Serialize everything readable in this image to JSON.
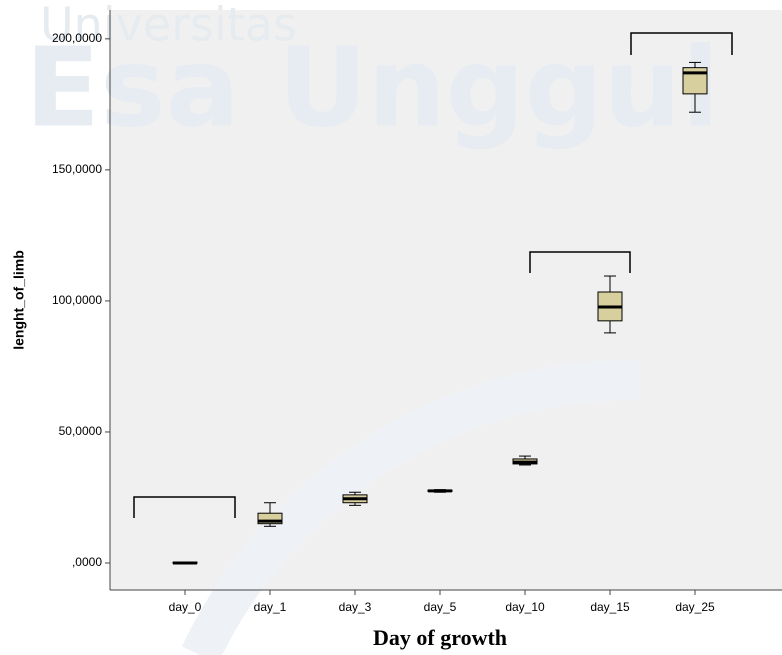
{
  "chart_data": {
    "type": "box",
    "watermark": [
      "Universitas",
      "Esa Unggul"
    ],
    "x_label": "Day of growth",
    "y_label": "lenght_of_limb",
    "categories": [
      "day_0",
      "day_1",
      "day_3",
      "day_5",
      "day_10",
      "day_15",
      "day_25"
    ],
    "boxes": [
      {
        "min": 0,
        "q1": 0,
        "median": 0,
        "q3": 0.3,
        "max": 0.3
      },
      {
        "min": 14,
        "q1": 15,
        "median": 16,
        "q3": 19,
        "max": 23
      },
      {
        "min": 22,
        "q1": 23,
        "median": 24.5,
        "q3": 26,
        "max": 27
      },
      {
        "min": 27,
        "q1": 27.3,
        "median": 27.5,
        "q3": 27.8,
        "max": 28
      },
      {
        "min": 37.4,
        "q1": 37.8,
        "median": 38.5,
        "q3": 39.7,
        "max": 40.8
      },
      {
        "min": 87.8,
        "q1": 92.4,
        "median": 97.7,
        "q3": 103.4,
        "max": 109.5
      },
      {
        "min": 172,
        "q1": 179,
        "median": 187,
        "q3": 189,
        "max": 191
      }
    ],
    "color": "#d8cf9e",
    "ylim": [
      -10.3,
      211
    ],
    "yticks": [
      {
        "value": 0,
        "label": ",0000"
      },
      {
        "value": 50,
        "label": "50,0000"
      },
      {
        "value": 100,
        "label": "100,0000"
      },
      {
        "value": 150,
        "label": "150,0000"
      },
      {
        "value": 200,
        "label": "200,0000"
      }
    ]
  }
}
